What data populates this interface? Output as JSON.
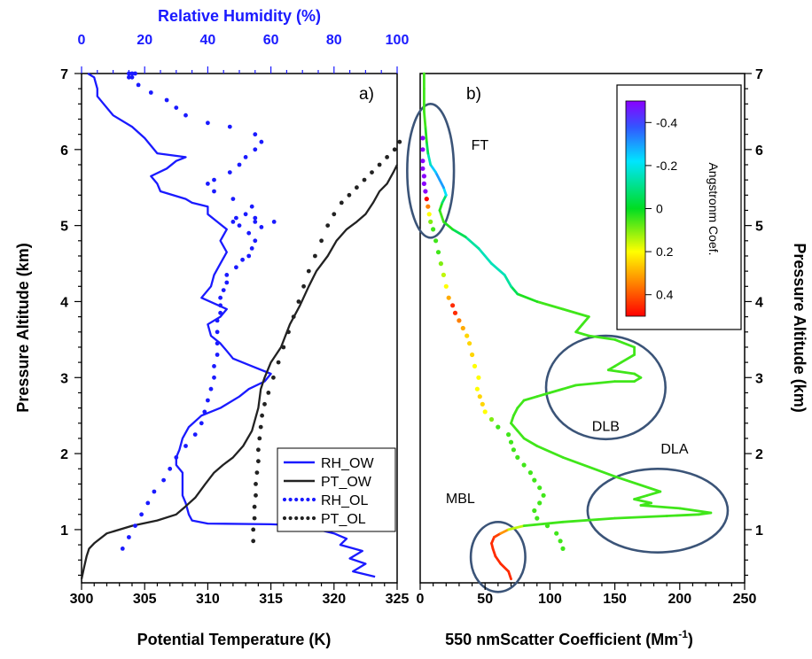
{
  "chart_data": [
    {
      "panel_label": "a)",
      "type": "line",
      "ylabel": "Pressure Altitude  (km)",
      "xlabel": "Potential Temperature (K)",
      "x2label": "Relative Humidity  (%)",
      "xlim": [
        300,
        325
      ],
      "x2lim": [
        0,
        100
      ],
      "ylim": [
        0.3,
        7.0
      ],
      "xticks": [
        "300",
        "305",
        "310",
        "315",
        "320",
        "325"
      ],
      "x2ticks": [
        "0",
        "20",
        "40",
        "60",
        "80",
        "100"
      ],
      "yticks": [
        "1",
        "2",
        "3",
        "4",
        "5",
        "6",
        "7"
      ],
      "legend_position": "bottom-right",
      "series": [
        {
          "name": "RH_OW",
          "axis": "top",
          "style": "solid",
          "color": "#1a1aff",
          "x": [
            93,
            86,
            90,
            85,
            89,
            82,
            84,
            80,
            75,
            72,
            60,
            40,
            35,
            34,
            33,
            32,
            32,
            32,
            32,
            30,
            30,
            31,
            32,
            34,
            38,
            44,
            50,
            53,
            58,
            60,
            54,
            48,
            46,
            44,
            41,
            40,
            44,
            46,
            38,
            41,
            42,
            44,
            46,
            44,
            46,
            43,
            40,
            40,
            35,
            33,
            25,
            24,
            22,
            27,
            30,
            33,
            24,
            22,
            20,
            16,
            10,
            7,
            5,
            5,
            4,
            2
          ],
          "y": [
            0.38,
            0.45,
            0.55,
            0.62,
            0.72,
            0.8,
            0.88,
            0.95,
            1.0,
            1.05,
            1.07,
            1.08,
            1.12,
            1.2,
            1.35,
            1.45,
            1.55,
            1.65,
            1.75,
            1.85,
            1.95,
            2.05,
            2.2,
            2.35,
            2.5,
            2.6,
            2.75,
            2.85,
            2.95,
            3.05,
            3.15,
            3.25,
            3.35,
            3.45,
            3.55,
            3.7,
            3.8,
            3.9,
            4.05,
            4.2,
            4.35,
            4.5,
            4.65,
            4.8,
            4.95,
            5.05,
            5.15,
            5.25,
            5.3,
            5.35,
            5.45,
            5.55,
            5.65,
            5.75,
            5.85,
            5.9,
            5.95,
            6.05,
            6.15,
            6.3,
            6.45,
            6.6,
            6.7,
            6.8,
            6.95,
            7.0
          ]
        },
        {
          "name": "PT_OW",
          "axis": "bottom",
          "style": "solid",
          "color": "#222222",
          "x": [
            300.0,
            300.2,
            300.4,
            300.6,
            301.0,
            302.0,
            304.0,
            306.0,
            307.5,
            308.2,
            309.0,
            309.8,
            310.5,
            311.2,
            312.0,
            312.8,
            313.5,
            314.0,
            314.2,
            314.5,
            315.0,
            315.8,
            316.5,
            317.3,
            318.0,
            318.6,
            319.5,
            320.2,
            321.0,
            321.8,
            322.5,
            323.1,
            323.6,
            324.2,
            324.7,
            325.0
          ],
          "y": [
            0.35,
            0.5,
            0.65,
            0.75,
            0.82,
            0.95,
            1.05,
            1.12,
            1.2,
            1.3,
            1.42,
            1.6,
            1.75,
            1.85,
            1.95,
            2.1,
            2.3,
            2.6,
            2.85,
            3.0,
            3.2,
            3.4,
            3.7,
            3.95,
            4.2,
            4.4,
            4.6,
            4.8,
            4.95,
            5.05,
            5.15,
            5.3,
            5.45,
            5.55,
            5.7,
            5.8
          ]
        },
        {
          "name": "RH_OL",
          "axis": "top",
          "style": "dotted",
          "color": "#1a1aff",
          "x": [
            13,
            15,
            17,
            19,
            21,
            23,
            26,
            28,
            30,
            33,
            36,
            38,
            39,
            40,
            41,
            42,
            42,
            43,
            43,
            43,
            43,
            44,
            44,
            44,
            45,
            46,
            46,
            49,
            51,
            53,
            54,
            55,
            53,
            50,
            48,
            49,
            52,
            55,
            55,
            57,
            61,
            54,
            48,
            42,
            40,
            42,
            47,
            50,
            52,
            55,
            57,
            55,
            47,
            40,
            33,
            30,
            27,
            22,
            18,
            16,
            15,
            15,
            16,
            17
          ],
          "y": [
            0.75,
            0.9,
            1.05,
            1.2,
            1.35,
            1.5,
            1.65,
            1.8,
            1.95,
            2.1,
            2.25,
            2.4,
            2.55,
            2.7,
            2.85,
            3.0,
            3.15,
            3.3,
            3.45,
            3.6,
            3.75,
            3.85,
            3.95,
            4.05,
            4.15,
            4.25,
            4.35,
            4.45,
            4.55,
            4.6,
            4.7,
            4.8,
            4.9,
            5.0,
            5.05,
            5.1,
            5.15,
            5.1,
            5.05,
            4.98,
            5.05,
            5.25,
            5.35,
            5.45,
            5.55,
            5.6,
            5.7,
            5.8,
            5.9,
            6.0,
            6.1,
            6.2,
            6.3,
            6.35,
            6.45,
            6.55,
            6.65,
            6.75,
            6.85,
            6.95,
            7.0,
            6.95,
            7.0,
            7.0
          ]
        },
        {
          "name": "PT_OL",
          "axis": "bottom",
          "style": "dotted",
          "color": "#222222",
          "x": [
            313.6,
            313.6,
            313.7,
            313.7,
            313.8,
            313.8,
            313.9,
            314.0,
            314.0,
            314.1,
            314.2,
            314.3,
            314.5,
            314.8,
            315.2,
            315.6,
            316.0,
            316.4,
            316.8,
            317.2,
            317.6,
            318.0,
            318.5,
            319.0,
            319.5,
            320.0,
            320.6,
            321.2,
            321.8,
            322.4,
            323.0,
            323.6,
            324.2,
            324.8,
            325.2
          ],
          "y": [
            0.85,
            1.0,
            1.15,
            1.3,
            1.45,
            1.6,
            1.75,
            1.9,
            2.05,
            2.2,
            2.35,
            2.5,
            2.65,
            2.8,
            3.0,
            3.2,
            3.4,
            3.6,
            3.8,
            4.0,
            4.2,
            4.4,
            4.6,
            4.8,
            5.0,
            5.15,
            5.3,
            5.4,
            5.5,
            5.6,
            5.7,
            5.8,
            5.9,
            6.0,
            6.1
          ]
        }
      ]
    },
    {
      "panel_label": "b)",
      "type": "line",
      "xlabel": "550 nmScatter Coefficient (Mm",
      "xlabel_sup": "-1",
      "xlabel_end": ")",
      "ylabel": "Pressure Altitude  (km)",
      "xlim": [
        0,
        250
      ],
      "ylim": [
        0.3,
        7.0
      ],
      "xticks": [
        "0",
        "50",
        "100",
        "150",
        "200",
        "250"
      ],
      "yticks": [
        "1",
        "2",
        "3",
        "4",
        "5",
        "6",
        "7"
      ],
      "colorbar": {
        "label": "Angstronm Coef.",
        "ticks": [
          "-0.4",
          "-0.2",
          "0",
          "0.2",
          "0.4"
        ],
        "tick_values": [
          -0.4,
          -0.2,
          0.0,
          0.2,
          0.4
        ],
        "range": [
          -0.5,
          0.5
        ]
      },
      "annotations": [
        "FT",
        "DLB",
        "DLA",
        "MBL"
      ],
      "series": [
        {
          "name": "solid",
          "style": "solid",
          "x": [
            70,
            68,
            62,
            58,
            56,
            55,
            57,
            62,
            68,
            80,
            110,
            150,
            190,
            215,
            224,
            200,
            170,
            178,
            165,
            175,
            185,
            150,
            110,
            90,
            80,
            75,
            70,
            72,
            75,
            80,
            90,
            100,
            120,
            150,
            165,
            170,
            165,
            145,
            150,
            155,
            165,
            165,
            150,
            130,
            120,
            125,
            130,
            110,
            90,
            75,
            70,
            65,
            55,
            45,
            35,
            25,
            18,
            15,
            17,
            20,
            18,
            15,
            12,
            8,
            6,
            5,
            4,
            3,
            3,
            3
          ],
          "y": [
            0.35,
            0.45,
            0.55,
            0.65,
            0.75,
            0.82,
            0.9,
            0.95,
            1.0,
            1.05,
            1.1,
            1.15,
            1.18,
            1.2,
            1.22,
            1.28,
            1.32,
            1.35,
            1.4,
            1.45,
            1.5,
            1.7,
            1.95,
            2.1,
            2.2,
            2.3,
            2.4,
            2.5,
            2.6,
            2.7,
            2.75,
            2.8,
            2.9,
            2.95,
            2.95,
            3.0,
            3.05,
            3.1,
            3.15,
            3.2,
            3.3,
            3.4,
            3.5,
            3.55,
            3.6,
            3.7,
            3.8,
            3.9,
            4.0,
            4.1,
            4.2,
            4.35,
            4.5,
            4.7,
            4.85,
            4.95,
            5.05,
            5.2,
            5.3,
            5.4,
            5.5,
            5.6,
            5.7,
            5.8,
            5.95,
            6.1,
            6.3,
            6.5,
            6.8,
            7.0
          ],
          "c": [
            0.45,
            0.45,
            0.45,
            0.45,
            0.45,
            0.45,
            0.45,
            0.4,
            0.25,
            0.05,
            0.05,
            0.05,
            0.05,
            0.05,
            0.05,
            0.05,
            0.05,
            0.05,
            0.05,
            0.05,
            0.05,
            0.05,
            0.05,
            0.05,
            0.05,
            0.05,
            0.05,
            0.05,
            0.05,
            0.05,
            0.05,
            0.05,
            0.05,
            0.05,
            0.05,
            0.05,
            0.05,
            0.05,
            0.05,
            0.05,
            0.05,
            0.05,
            0.05,
            0.05,
            0.05,
            0.05,
            0.05,
            0.05,
            0.05,
            0.0,
            -0.1,
            -0.15,
            -0.15,
            -0.15,
            -0.1,
            0.0,
            0.05,
            0.05,
            0.0,
            -0.15,
            -0.3,
            -0.3,
            -0.3,
            -0.2,
            -0.1,
            0.0,
            0.05,
            0.05,
            0.05,
            0.05
          ]
        },
        {
          "name": "dotted",
          "style": "dotted",
          "x": [
            110,
            108,
            105,
            98,
            90,
            88,
            92,
            95,
            92,
            88,
            85,
            80,
            75,
            72,
            70,
            68,
            60,
            55,
            50,
            48,
            46,
            44,
            45,
            42,
            40,
            38,
            36,
            33,
            30,
            27,
            25,
            22,
            20,
            18,
            16,
            14,
            12,
            10,
            8,
            7,
            6,
            5,
            4,
            3,
            3,
            2,
            2,
            2,
            2
          ],
          "y": [
            0.75,
            0.85,
            0.95,
            1.05,
            1.15,
            1.25,
            1.35,
            1.45,
            1.55,
            1.65,
            1.75,
            1.85,
            1.95,
            2.05,
            2.15,
            2.25,
            2.35,
            2.45,
            2.55,
            2.65,
            2.75,
            2.85,
            3.0,
            3.15,
            3.3,
            3.45,
            3.55,
            3.65,
            3.75,
            3.85,
            3.95,
            4.05,
            4.2,
            4.35,
            4.5,
            4.65,
            4.8,
            4.95,
            5.05,
            5.15,
            5.25,
            5.35,
            5.45,
            5.55,
            5.65,
            5.75,
            5.85,
            6.0,
            6.15
          ],
          "c": [
            0.05,
            0.05,
            0.05,
            0.05,
            0.05,
            0.05,
            0.05,
            0.05,
            0.05,
            0.05,
            0.05,
            0.05,
            0.05,
            0.05,
            0.05,
            0.05,
            0.05,
            0.1,
            0.2,
            0.25,
            0.25,
            0.2,
            0.2,
            0.2,
            0.25,
            0.25,
            0.25,
            0.3,
            0.35,
            0.45,
            0.45,
            0.3,
            0.2,
            0.15,
            0.1,
            0.05,
            0.05,
            0.05,
            0.1,
            0.2,
            0.35,
            0.5,
            -0.5,
            -0.5,
            -0.5,
            -0.5,
            -0.5,
            -0.5,
            -0.5
          ]
        }
      ],
      "ellipses": [
        {
          "label": "FT",
          "cx": 8,
          "cy": 5.72,
          "rx": 18,
          "ry": 0.88
        },
        {
          "label": "DLB",
          "cx": 143,
          "cy": 2.87,
          "rx": 46,
          "ry": 0.68
        },
        {
          "label": "DLA",
          "cx": 183,
          "cy": 1.25,
          "rx": 54,
          "ry": 0.55
        },
        {
          "label": "MBL",
          "cx": 60,
          "cy": 0.64,
          "rx": 21,
          "ry": 0.46
        }
      ]
    }
  ]
}
